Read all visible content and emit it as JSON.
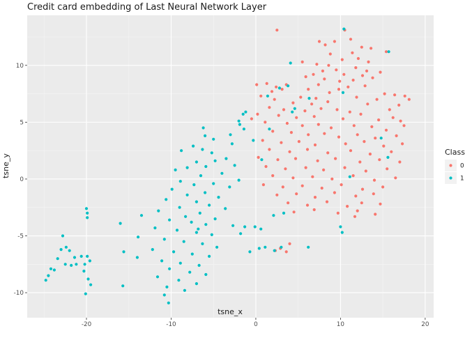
{
  "chart_data": {
    "type": "scatter",
    "title": "Credit card embedding of Last Neural Network Layer",
    "xlabel": "tsne_x",
    "ylabel": "tsne_y",
    "xlim": [
      -27,
      21
    ],
    "ylim": [
      -12.2,
      14.4
    ],
    "x_ticks": [
      -20,
      -10,
      0,
      10,
      20
    ],
    "y_ticks": [
      -10,
      -5,
      0,
      5,
      10
    ],
    "x_tick_labels": [
      "-20",
      "-10",
      "0",
      "10",
      "20"
    ],
    "y_tick_labels": [
      "-10",
      "-5",
      "0",
      "5",
      "10"
    ],
    "grid": true,
    "legend": {
      "title": "Class",
      "placement": "right"
    },
    "series": [
      {
        "name": "0",
        "color": "#F8766D",
        "points": [
          [
            2.5,
            13.1
          ],
          [
            10.5,
            13.1
          ],
          [
            7.5,
            12.1
          ],
          [
            8.2,
            11.8
          ],
          [
            9.3,
            12.1
          ],
          [
            11.2,
            12.3
          ],
          [
            12.5,
            11.6
          ],
          [
            15.4,
            11.2
          ],
          [
            13.6,
            11.5
          ],
          [
            8.8,
            11.0
          ],
          [
            11.4,
            11.1
          ],
          [
            10.2,
            10.5
          ],
          [
            12.1,
            10.6
          ],
          [
            13.3,
            10.3
          ],
          [
            5.5,
            10.3
          ],
          [
            7.2,
            10.1
          ],
          [
            8.6,
            10.0
          ],
          [
            9.5,
            9.6
          ],
          [
            11.8,
            9.8
          ],
          [
            13.1,
            9.5
          ],
          [
            14.7,
            9.4
          ],
          [
            6.8,
            9.2
          ],
          [
            7.9,
            9.5
          ],
          [
            10.4,
            9.2
          ],
          [
            12.6,
            9.1
          ],
          [
            5.9,
            9.0
          ],
          [
            8.1,
            8.8
          ],
          [
            9.9,
            8.6
          ],
          [
            11.5,
            8.7
          ],
          [
            13.8,
            8.9
          ],
          [
            1.3,
            8.4
          ],
          [
            2.4,
            8.1
          ],
          [
            3.6,
            8.3
          ],
          [
            7.4,
            8.3
          ],
          [
            10.9,
            8.1
          ],
          [
            12.9,
            8.2
          ],
          [
            0.1,
            8.3
          ],
          [
            1.9,
            7.7
          ],
          [
            3.1,
            7.9
          ],
          [
            6.2,
            7.9
          ],
          [
            8.7,
            7.6
          ],
          [
            9.8,
            7.9
          ],
          [
            15.2,
            7.5
          ],
          [
            0.6,
            7.3
          ],
          [
            2.2,
            7.0
          ],
          [
            5.3,
            7.2
          ],
          [
            7.1,
            7.1
          ],
          [
            11.9,
            7.2
          ],
          [
            14.3,
            7.0
          ],
          [
            16.4,
            7.4
          ],
          [
            17.6,
            7.3
          ],
          [
            18.1,
            7.0
          ],
          [
            4.4,
            6.7
          ],
          [
            6.6,
            6.6
          ],
          [
            8.5,
            6.8
          ],
          [
            13.2,
            6.6
          ],
          [
            16.9,
            6.5
          ],
          [
            1.6,
            6.3
          ],
          [
            3.3,
            6.1
          ],
          [
            5.8,
            6.0
          ],
          [
            7.7,
            6.2
          ],
          [
            9.6,
            6.1
          ],
          [
            11.1,
            5.9
          ],
          [
            15.8,
            6.1
          ],
          [
            0.2,
            5.7
          ],
          [
            2.7,
            5.6
          ],
          [
            4.8,
            5.4
          ],
          [
            6.9,
            5.5
          ],
          [
            10.3,
            5.3
          ],
          [
            12.4,
            5.7
          ],
          [
            14.5,
            5.2
          ],
          [
            16.2,
            5.4
          ],
          [
            17.1,
            5.1
          ],
          [
            -0.5,
            5.3
          ],
          [
            1.1,
            5.0
          ],
          [
            3.7,
            4.9
          ],
          [
            5.5,
            4.7
          ],
          [
            7.4,
            4.8
          ],
          [
            8.9,
            4.5
          ],
          [
            11.6,
            4.7
          ],
          [
            13.7,
            4.6
          ],
          [
            15.4,
            4.3
          ],
          [
            17.5,
            4.7
          ],
          [
            2.0,
            4.2
          ],
          [
            4.2,
            4.1
          ],
          [
            6.2,
            3.9
          ],
          [
            8.1,
            4.0
          ],
          [
            9.8,
            3.7
          ],
          [
            12.0,
            3.9
          ],
          [
            14.1,
            3.6
          ],
          [
            16.6,
            3.8
          ],
          [
            0.8,
            3.4
          ],
          [
            3.0,
            3.2
          ],
          [
            5.1,
            3.3
          ],
          [
            7.0,
            3.0
          ],
          [
            10.6,
            3.1
          ],
          [
            12.8,
            3.3
          ],
          [
            15.1,
            2.9
          ],
          [
            17.3,
            3.1
          ],
          [
            1.6,
            2.6
          ],
          [
            4.0,
            2.4
          ],
          [
            6.1,
            2.6
          ],
          [
            8.5,
            2.3
          ],
          [
            11.2,
            2.5
          ],
          [
            13.5,
            2.2
          ],
          [
            16.0,
            2.4
          ],
          [
            0.3,
            1.9
          ],
          [
            2.6,
            1.7
          ],
          [
            4.7,
            1.8
          ],
          [
            7.3,
            1.6
          ],
          [
            9.4,
            1.8
          ],
          [
            12.3,
            1.5
          ],
          [
            14.6,
            1.7
          ],
          [
            17.0,
            1.5
          ],
          [
            1.2,
            1.1
          ],
          [
            3.5,
            0.9
          ],
          [
            5.9,
            1.0
          ],
          [
            8.0,
            0.8
          ],
          [
            10.5,
            1.0
          ],
          [
            13.0,
            0.7
          ],
          [
            15.5,
            0.9
          ],
          [
            2.0,
            0.3
          ],
          [
            4.4,
            0.1
          ],
          [
            6.7,
            0.2
          ],
          [
            9.0,
            0.0
          ],
          [
            11.5,
            0.3
          ],
          [
            14.0,
            -0.1
          ],
          [
            16.5,
            0.1
          ],
          [
            0.9,
            -0.5
          ],
          [
            3.2,
            -0.7
          ],
          [
            5.5,
            -0.6
          ],
          [
            7.8,
            -0.8
          ],
          [
            10.1,
            -0.5
          ],
          [
            12.6,
            -0.9
          ],
          [
            15.0,
            -0.7
          ],
          [
            2.5,
            -1.4
          ],
          [
            4.8,
            -1.3
          ],
          [
            7.0,
            -1.6
          ],
          [
            9.3,
            -1.2
          ],
          [
            11.8,
            -1.5
          ],
          [
            13.9,
            -1.3
          ],
          [
            3.8,
            -2.1
          ],
          [
            6.1,
            -2.3
          ],
          [
            8.4,
            -2.0
          ],
          [
            10.8,
            -2.4
          ],
          [
            12.5,
            -2.1
          ],
          [
            14.7,
            -2.2
          ],
          [
            4.5,
            -2.9
          ],
          [
            6.9,
            -2.7
          ],
          [
            9.7,
            -3.0
          ],
          [
            12.0,
            -2.8
          ],
          [
            14.1,
            -3.1
          ],
          [
            11.7,
            -3.3
          ],
          [
            4.0,
            -5.7
          ],
          [
            2.9,
            -6.1
          ],
          [
            3.6,
            -6.4
          ],
          [
            2.3,
            -6.3
          ]
        ]
      },
      {
        "name": "1",
        "color": "#00BFC4",
        "points": [
          [
            10.4,
            13.2
          ],
          [
            15.7,
            11.2
          ],
          [
            4.1,
            10.2
          ],
          [
            3.8,
            8.2
          ],
          [
            10.3,
            7.6
          ],
          [
            2.8,
            8.0
          ],
          [
            6.3,
            7.1
          ],
          [
            1.4,
            7.3
          ],
          [
            -1.2,
            5.9
          ],
          [
            -1.5,
            5.7
          ],
          [
            4.6,
            6.2
          ],
          [
            -2.0,
            5.1
          ],
          [
            -1.9,
            4.8
          ],
          [
            -6.2,
            4.5
          ],
          [
            -1.4,
            4.4
          ],
          [
            1.6,
            4.4
          ],
          [
            -3.0,
            3.9
          ],
          [
            -6.0,
            3.8
          ],
          [
            -0.3,
            3.4
          ],
          [
            -5.0,
            3.5
          ],
          [
            -2.8,
            3.1
          ],
          [
            -7.4,
            2.9
          ],
          [
            -8.8,
            2.5
          ],
          [
            -6.3,
            2.6
          ],
          [
            -5.2,
            2.3
          ],
          [
            -3.5,
            1.8
          ],
          [
            0.7,
            1.7
          ],
          [
            -4.8,
            1.6
          ],
          [
            -7.0,
            1.5
          ],
          [
            -2.5,
            1.2
          ],
          [
            -5.9,
            1.1
          ],
          [
            -8.1,
            1.0
          ],
          [
            -9.5,
            0.8
          ],
          [
            -4.0,
            0.5
          ],
          [
            -6.5,
            0.3
          ],
          [
            -2.0,
            -0.1
          ],
          [
            -8.9,
            -0.2
          ],
          [
            -7.3,
            -0.5
          ],
          [
            -5.0,
            -0.4
          ],
          [
            -3.1,
            -0.7
          ],
          [
            -9.9,
            -0.9
          ],
          [
            -6.0,
            -1.2
          ],
          [
            -8.1,
            -1.4
          ],
          [
            -4.4,
            -1.6
          ],
          [
            -10.6,
            -1.8
          ],
          [
            -7.0,
            -2.0
          ],
          [
            -5.5,
            -2.3
          ],
          [
            -3.6,
            -2.6
          ],
          [
            -9.0,
            -2.5
          ],
          [
            -11.5,
            -2.8
          ],
          [
            -6.6,
            -3.0
          ],
          [
            -8.3,
            -3.3
          ],
          [
            -4.8,
            -3.5
          ],
          [
            -13.5,
            -3.2
          ],
          [
            -10.2,
            -3.6
          ],
          [
            -7.6,
            -3.8
          ],
          [
            -5.9,
            -4.0
          ],
          [
            -0.1,
            -4.2
          ],
          [
            0.6,
            -4.4
          ],
          [
            -9.3,
            -4.5
          ],
          [
            -11.9,
            -4.3
          ],
          [
            -7.0,
            -4.7
          ],
          [
            -5.2,
            -4.9
          ],
          [
            -13.9,
            -5.1
          ],
          [
            -10.8,
            -5.3
          ],
          [
            -8.5,
            -5.5
          ],
          [
            -6.3,
            -5.7
          ],
          [
            -4.6,
            -6.0
          ],
          [
            -12.2,
            -6.2
          ],
          [
            -9.7,
            -6.4
          ],
          [
            -7.5,
            -6.6
          ],
          [
            -5.5,
            -6.8
          ],
          [
            -14.0,
            -6.9
          ],
          [
            -11.1,
            -7.2
          ],
          [
            -8.9,
            -7.4
          ],
          [
            -6.7,
            -7.6
          ],
          [
            -10.2,
            -7.9
          ],
          [
            -7.8,
            -8.2
          ],
          [
            -5.9,
            -8.4
          ],
          [
            -11.6,
            -8.6
          ],
          [
            -9.1,
            -8.9
          ],
          [
            -7.0,
            -9.2
          ],
          [
            -10.5,
            -9.5
          ],
          [
            -8.4,
            -9.8
          ],
          [
            -10.8,
            -10.2
          ],
          [
            -10.3,
            -10.9
          ],
          [
            -16.0,
            -3.9
          ],
          [
            -15.6,
            -6.4
          ],
          [
            -15.7,
            -9.4
          ],
          [
            -20.0,
            -2.6
          ],
          [
            -19.9,
            -3.0
          ],
          [
            -19.9,
            -3.4
          ],
          [
            -20.1,
            -10.1
          ],
          [
            -19.5,
            -9.3
          ],
          [
            -19.8,
            -8.8
          ],
          [
            -19.9,
            -6.8
          ],
          [
            -20.2,
            -7.5
          ],
          [
            -19.6,
            -7.2
          ],
          [
            -20.6,
            -6.8
          ],
          [
            -21.4,
            -6.9
          ],
          [
            -22.0,
            -6.3
          ],
          [
            -22.4,
            -6.0
          ],
          [
            -22.8,
            -5.0
          ],
          [
            -23.0,
            -6.2
          ],
          [
            -22.5,
            -7.5
          ],
          [
            -23.4,
            -7.0
          ],
          [
            -23.8,
            -8.0
          ],
          [
            -24.2,
            -7.9
          ],
          [
            -24.5,
            -8.5
          ],
          [
            -24.8,
            -8.9
          ],
          [
            -21.8,
            -7.6
          ],
          [
            -21.2,
            -7.5
          ],
          [
            -20.3,
            -8.1
          ],
          [
            -2.7,
            -4.1
          ],
          [
            -1.3,
            -4.2
          ],
          [
            1.1,
            -6.0
          ],
          [
            2.2,
            -6.3
          ],
          [
            3.0,
            -6.0
          ],
          [
            -1.8,
            -4.8
          ],
          [
            3.3,
            -3.0
          ],
          [
            2.1,
            -3.2
          ],
          [
            -0.7,
            -6.4
          ],
          [
            0.4,
            -6.1
          ],
          [
            6.2,
            -6.0
          ],
          [
            -6.8,
            -4.4
          ],
          [
            10.0,
            -4.2
          ],
          [
            10.2,
            -4.7
          ],
          [
            15.6,
            1.9
          ],
          [
            14.8,
            3.6
          ],
          [
            4.3,
            5.9
          ],
          [
            11.1,
            0.2
          ]
        ]
      }
    ]
  }
}
